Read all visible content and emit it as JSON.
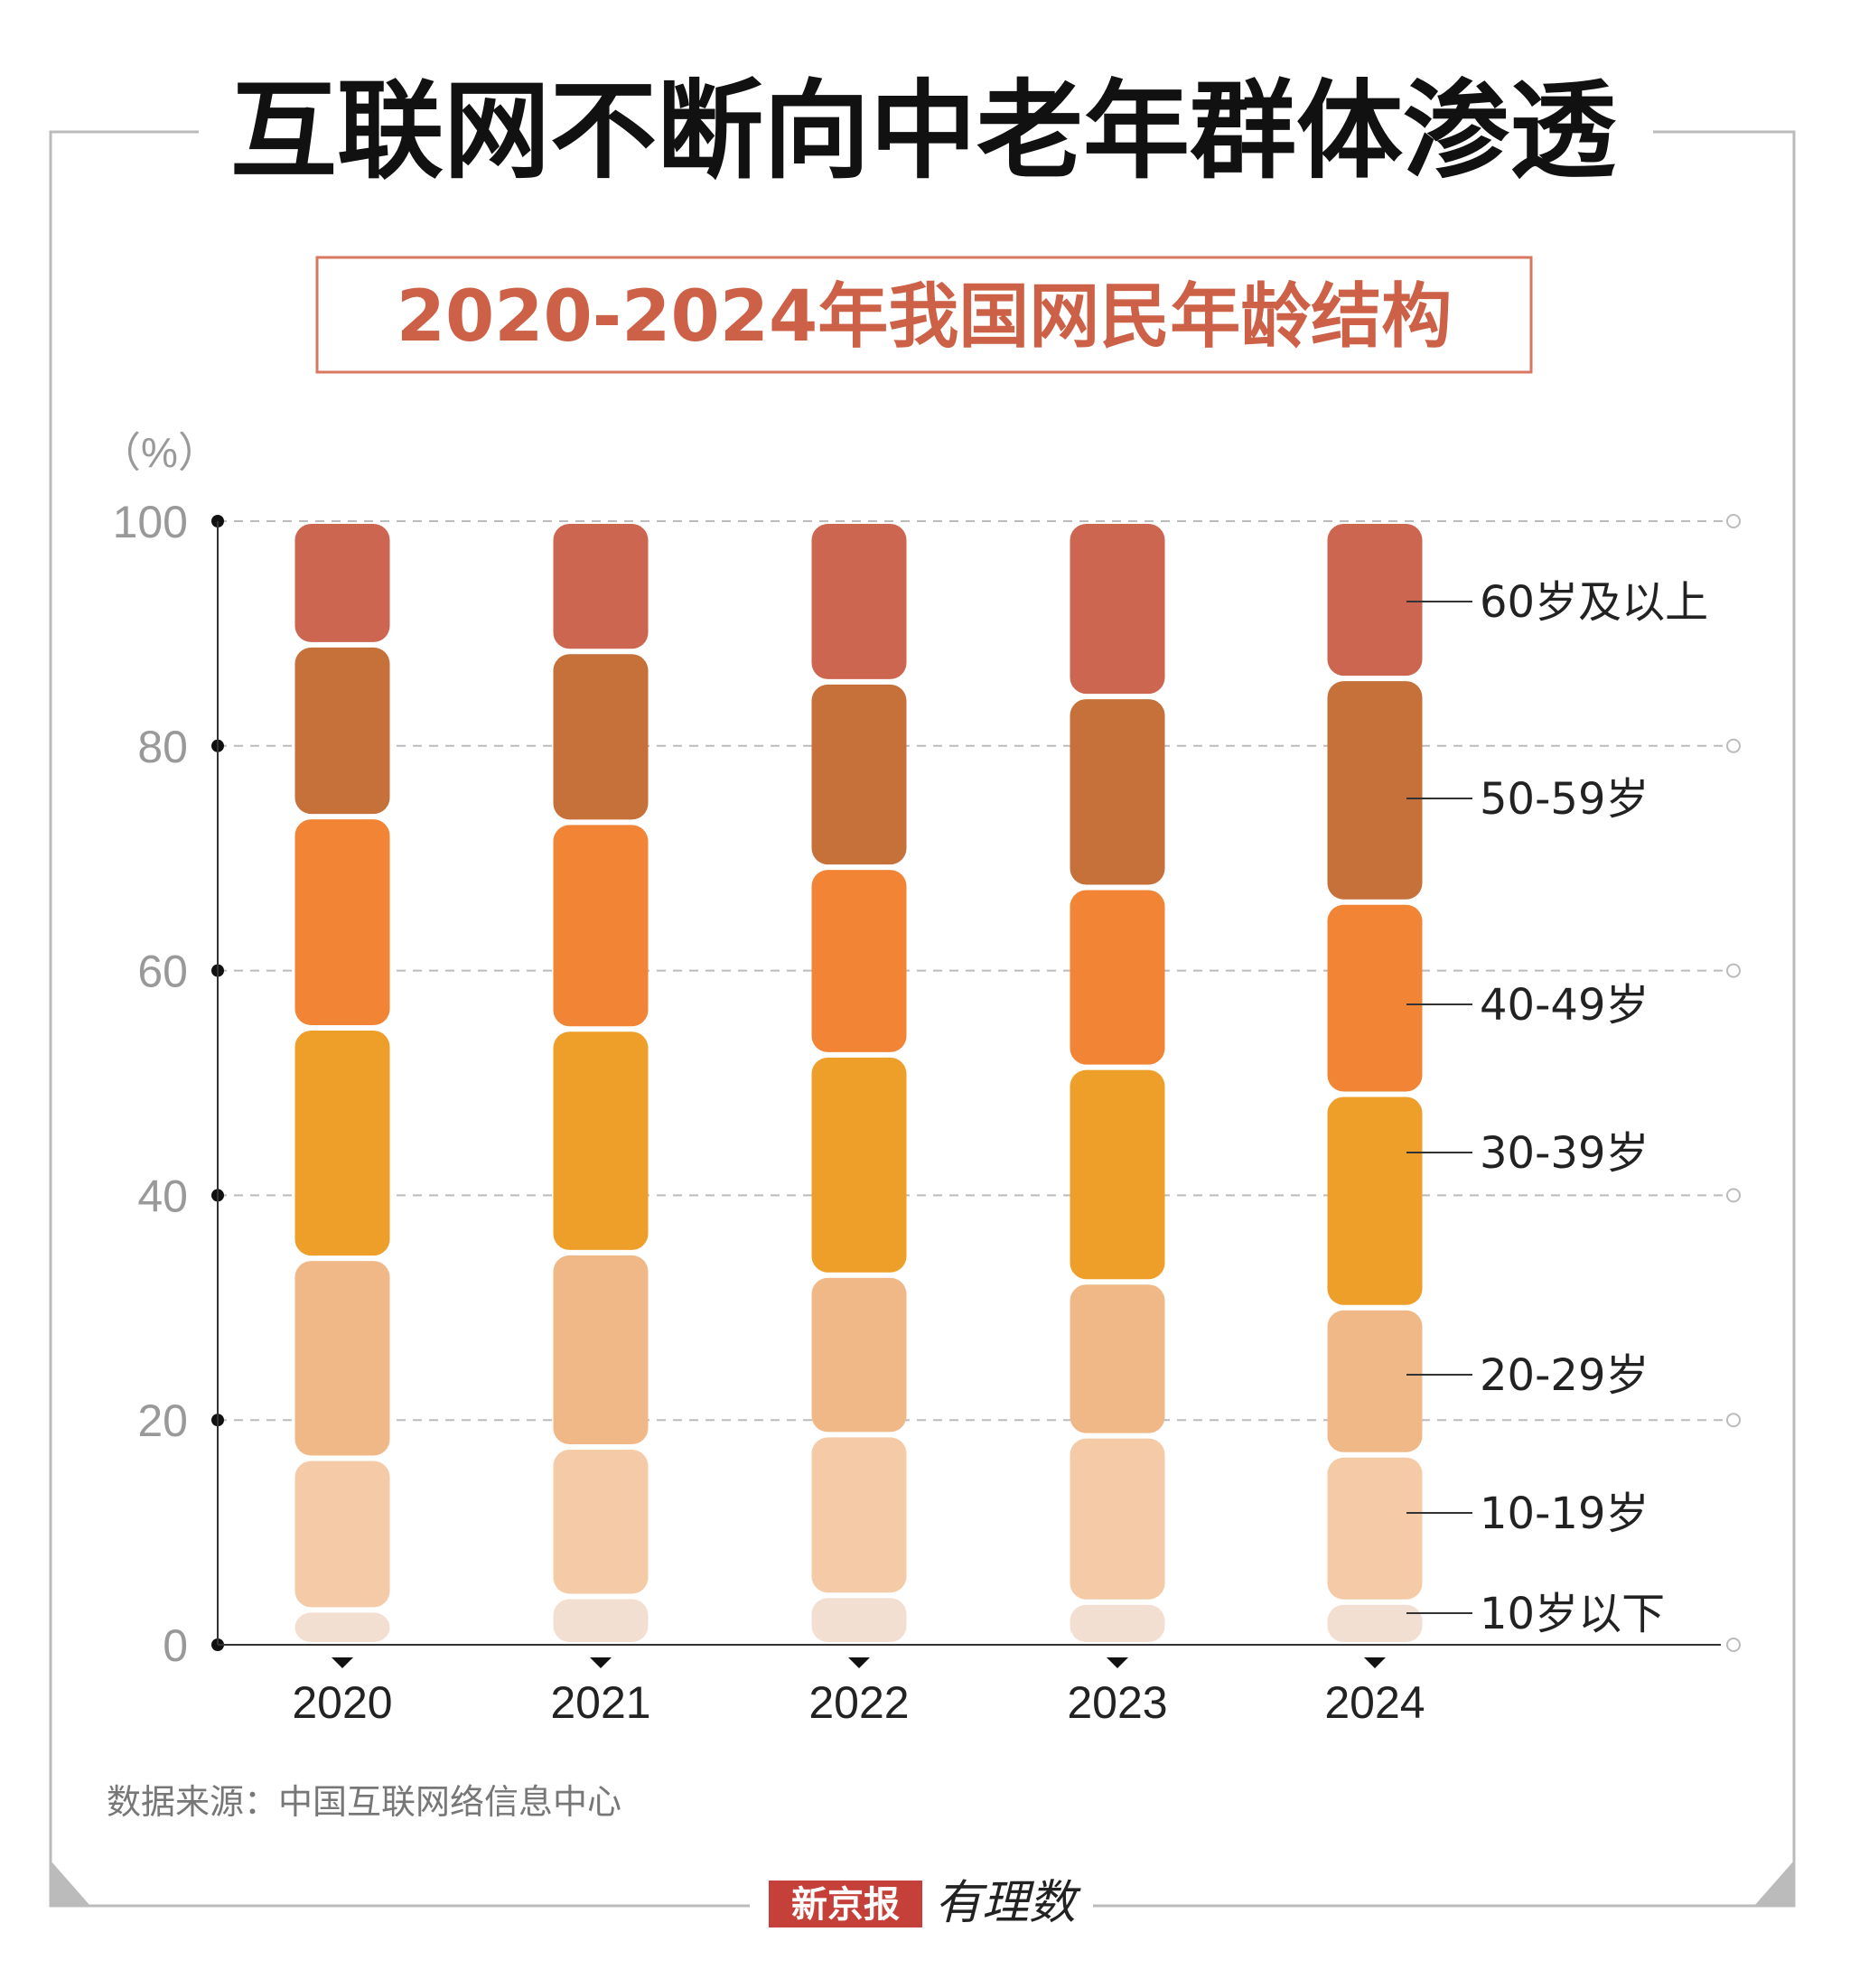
{
  "title": "互联网不断向中老年群体渗透",
  "chart_data": {
    "type": "bar",
    "stacked": true,
    "title": "2020-2024年我国网民年龄结构",
    "ylabel": "（%）",
    "xlabel": "",
    "ylim": [
      0,
      100
    ],
    "yticks": [
      "0",
      "20",
      "40",
      "60",
      "80",
      "100"
    ],
    "grid": true,
    "legend_placement": "right",
    "categories": [
      "2020",
      "2021",
      "2022",
      "2023",
      "2024"
    ],
    "series": [
      {
        "name": "10岁以下",
        "color": "#f3dfd2",
        "values": [
          3.1,
          4.3,
          4.4,
          3.8,
          3.8
        ]
      },
      {
        "name": "10-19岁",
        "color": "#f4cba6",
        "values": [
          13.5,
          13.3,
          14.3,
          14.8,
          13.1
        ]
      },
      {
        "name": "20-29岁",
        "color": "#f0b887",
        "values": [
          17.8,
          17.3,
          14.2,
          13.7,
          13.1
        ]
      },
      {
        "name": "30-39岁",
        "color": "#ee9f2a",
        "values": [
          20.5,
          19.9,
          19.6,
          19.1,
          19.0
        ]
      },
      {
        "name": "40-49岁",
        "color": "#f28535",
        "values": [
          18.8,
          18.4,
          16.7,
          16.0,
          17.1
        ]
      },
      {
        "name": "50-59岁",
        "color": "#c6713a",
        "values": [
          15.3,
          15.2,
          16.5,
          17.0,
          19.9
        ]
      },
      {
        "name": "60岁及以上",
        "color": "#cc6650",
        "values": [
          11.0,
          11.6,
          14.3,
          15.6,
          14.0
        ]
      }
    ]
  },
  "source": "数据来源：中国互联网络信息中心",
  "logo": {
    "brand": "新京报",
    "sub": "有理数"
  }
}
